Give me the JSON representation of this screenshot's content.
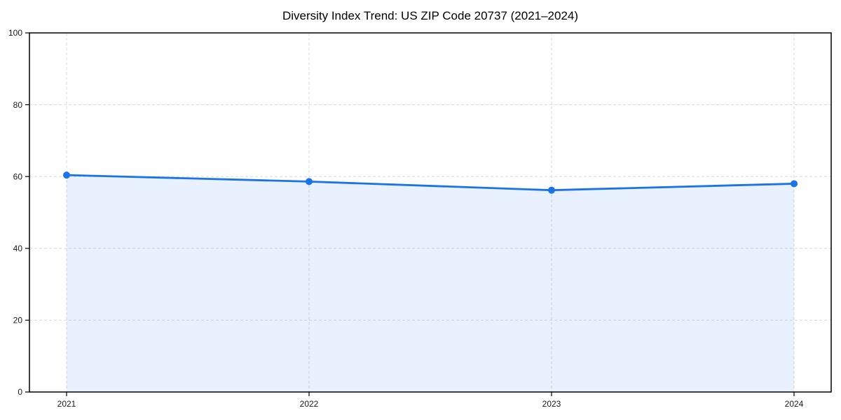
{
  "chart_data": {
    "type": "area",
    "title": "Diversity Index Trend: US ZIP Code 20737 (2021–2024)",
    "categories": [
      "2021",
      "2022",
      "2023",
      "2024"
    ],
    "series": [
      {
        "name": "Diversity Index",
        "values": [
          60.4,
          58.6,
          56.2,
          58.0
        ]
      }
    ],
    "xlabel": "",
    "ylabel": "",
    "ylim": [
      0,
      100
    ],
    "yticks": [
      0,
      20,
      40,
      60,
      80,
      100
    ],
    "grid": true,
    "grid_style": "dashed",
    "legend_position": "none",
    "marker": "circle",
    "colors": {
      "line": "#1a73e8",
      "marker": "#1a73e8",
      "area_fill": "#1a73e8",
      "area_fill_opacity": 0.1,
      "grid": "#d9d9d9",
      "spine": "#000000",
      "tick_label": "#1a1a1a",
      "title": "#000000",
      "background": "#ffffff"
    }
  }
}
